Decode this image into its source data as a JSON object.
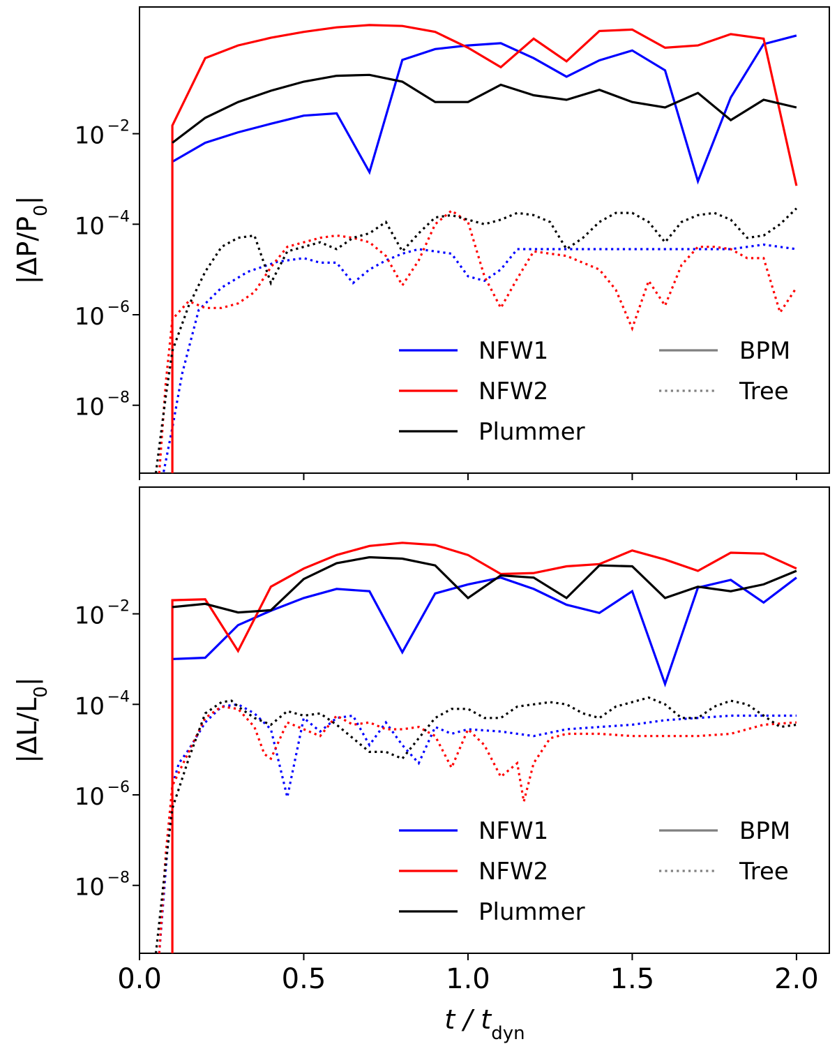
{
  "figure": {
    "xlabel": "t / t_dyn",
    "xlabel_parts": {
      "main": "t / t",
      "sub": "dyn"
    },
    "line_styles": {
      "BPM": "solid",
      "Tree": "dotted"
    }
  },
  "chart_data": [
    {
      "type": "line",
      "panel": "top",
      "ylabel": "|ΔP/P₀|",
      "ylabel_parts": {
        "open": "|ΔP/P",
        "sub": "0",
        "close": "|"
      },
      "yscale": "log",
      "xlim": [
        0.0,
        2.1
      ],
      "ylim_log10": [
        -9.5,
        0.8
      ],
      "xticks": [
        "0.0",
        "0.5",
        "1.0",
        "1.5",
        "2.0"
      ],
      "xtick_values": [
        0.0,
        0.5,
        1.0,
        1.5,
        2.0
      ],
      "yticks": [
        {
          "base": "10",
          "exp": "−2",
          "log10": -2
        },
        {
          "base": "10",
          "exp": "−4",
          "log10": -4
        },
        {
          "base": "10",
          "exp": "−6",
          "log10": -6
        },
        {
          "base": "10",
          "exp": "−8",
          "log10": -8
        }
      ],
      "legend": {
        "models": [
          {
            "label": "NFW1",
            "color": "#0000ff"
          },
          {
            "label": "NFW2",
            "color": "#ff0000"
          },
          {
            "label": "Plummer",
            "color": "#000000"
          }
        ],
        "methods": [
          {
            "label": "BPM",
            "style": "solid",
            "color": "#808080"
          },
          {
            "label": "Tree",
            "style": "dotted",
            "color": "#808080"
          }
        ],
        "position": "lower-right"
      },
      "series": [
        {
          "name": "NFW1",
          "method": "BPM",
          "color": "#0000ff",
          "style": "solid",
          "x": [
            0.1,
            0.2,
            0.3,
            0.4,
            0.5,
            0.6,
            0.7,
            0.8,
            0.9,
            1.0,
            1.1,
            1.2,
            1.3,
            1.4,
            1.5,
            1.6,
            1.7,
            1.8,
            1.9,
            2.0
          ],
          "log10_y": [
            -2.62,
            -2.2,
            -1.97,
            -1.78,
            -1.6,
            -1.55,
            -2.85,
            -0.37,
            -0.13,
            -0.05,
            0.0,
            -0.33,
            -0.74,
            -0.38,
            -0.16,
            -0.6,
            -3.05,
            -1.2,
            -0.02,
            0.17
          ]
        },
        {
          "name": "NFW1",
          "method": "Tree",
          "color": "#0000ff",
          "style": "dotted",
          "x": [
            0.07,
            0.1,
            0.13,
            0.18,
            0.25,
            0.33,
            0.42,
            0.5,
            0.55,
            0.6,
            0.65,
            0.7,
            0.75,
            0.8,
            0.85,
            0.9,
            0.95,
            1.0,
            1.05,
            1.1,
            1.15,
            1.2,
            1.3,
            1.4,
            1.5,
            1.6,
            1.7,
            1.8,
            1.9,
            2.0
          ],
          "log10_y": [
            -9.6,
            -8.5,
            -7.3,
            -5.9,
            -5.4,
            -5.05,
            -4.83,
            -4.75,
            -4.85,
            -4.85,
            -5.3,
            -5.0,
            -4.8,
            -4.65,
            -4.55,
            -4.6,
            -4.65,
            -5.15,
            -5.25,
            -5.0,
            -4.55,
            -4.55,
            -4.55,
            -4.55,
            -4.55,
            -4.55,
            -4.55,
            -4.55,
            -4.45,
            -4.55
          ]
        },
        {
          "name": "NFW2",
          "method": "BPM",
          "color": "#ff0000",
          "style": "solid",
          "x": [
            0.1,
            0.1,
            0.2,
            0.3,
            0.4,
            0.5,
            0.6,
            0.7,
            0.8,
            0.9,
            1.0,
            1.1,
            1.2,
            1.3,
            1.4,
            1.5,
            1.6,
            1.7,
            1.8,
            1.9,
            2.0
          ],
          "log10_y": [
            -9.5,
            -1.82,
            -0.33,
            -0.05,
            0.12,
            0.25,
            0.35,
            0.4,
            0.38,
            0.25,
            -0.1,
            -0.53,
            0.1,
            -0.4,
            0.27,
            0.3,
            -0.1,
            -0.05,
            0.2,
            0.1,
            -3.15
          ]
        },
        {
          "name": "NFW2",
          "method": "Tree",
          "color": "#ff0000",
          "style": "dotted",
          "x": [
            0.06,
            0.08,
            0.1,
            0.15,
            0.2,
            0.25,
            0.3,
            0.35,
            0.4,
            0.45,
            0.5,
            0.55,
            0.6,
            0.65,
            0.7,
            0.75,
            0.8,
            0.85,
            0.9,
            0.95,
            1.0,
            1.05,
            1.1,
            1.15,
            1.2,
            1.3,
            1.4,
            1.45,
            1.5,
            1.55,
            1.6,
            1.65,
            1.7,
            1.75,
            1.8,
            1.85,
            1.9,
            1.95,
            2.0
          ],
          "log10_y": [
            -9.5,
            -7.5,
            -6.1,
            -5.7,
            -5.85,
            -5.85,
            -5.75,
            -5.5,
            -4.95,
            -4.5,
            -4.4,
            -4.3,
            -4.25,
            -4.3,
            -4.4,
            -4.7,
            -5.35,
            -4.8,
            -4.0,
            -3.7,
            -3.95,
            -5.15,
            -5.85,
            -5.2,
            -4.6,
            -4.7,
            -5.0,
            -5.45,
            -6.3,
            -5.25,
            -5.8,
            -4.9,
            -4.5,
            -4.5,
            -4.55,
            -4.75,
            -4.75,
            -5.95,
            -5.4
          ]
        },
        {
          "name": "Plummer",
          "method": "BPM",
          "color": "#000000",
          "style": "solid",
          "x": [
            0.1,
            0.2,
            0.3,
            0.4,
            0.5,
            0.6,
            0.7,
            0.8,
            0.9,
            1.0,
            1.1,
            1.2,
            1.3,
            1.4,
            1.5,
            1.6,
            1.7,
            1.8,
            1.9,
            2.0
          ],
          "log10_y": [
            -2.2,
            -1.65,
            -1.3,
            -1.05,
            -0.85,
            -0.72,
            -0.7,
            -0.85,
            -1.3,
            -1.3,
            -0.92,
            -1.15,
            -1.25,
            -1.03,
            -1.3,
            -1.42,
            -1.1,
            -1.7,
            -1.25,
            -1.42
          ]
        },
        {
          "name": "Plummer",
          "method": "Tree",
          "color": "#000000",
          "style": "dotted",
          "x": [
            0.05,
            0.08,
            0.1,
            0.15,
            0.2,
            0.25,
            0.3,
            0.35,
            0.4,
            0.45,
            0.5,
            0.55,
            0.6,
            0.65,
            0.7,
            0.75,
            0.8,
            0.85,
            0.9,
            0.95,
            1.0,
            1.05,
            1.1,
            1.15,
            1.2,
            1.25,
            1.3,
            1.35,
            1.4,
            1.45,
            1.5,
            1.55,
            1.6,
            1.65,
            1.7,
            1.75,
            1.8,
            1.85,
            1.9,
            1.95,
            2.0
          ],
          "log10_y": [
            -9.5,
            -7.8,
            -6.8,
            -5.8,
            -5.05,
            -4.5,
            -4.3,
            -4.25,
            -5.3,
            -4.6,
            -4.5,
            -4.4,
            -4.55,
            -4.3,
            -4.2,
            -3.95,
            -4.6,
            -4.2,
            -3.85,
            -3.8,
            -3.9,
            -4.0,
            -3.9,
            -3.75,
            -3.8,
            -3.95,
            -4.55,
            -4.3,
            -3.95,
            -3.75,
            -3.75,
            -3.95,
            -4.4,
            -3.95,
            -3.8,
            -3.75,
            -3.9,
            -4.3,
            -4.25,
            -4.0,
            -3.65
          ]
        }
      ]
    },
    {
      "type": "line",
      "panel": "bottom",
      "ylabel": "|ΔL/L₀|",
      "ylabel_parts": {
        "open": "|ΔL/L",
        "sub": "0",
        "close": "|"
      },
      "yscale": "log",
      "xlim": [
        0.0,
        2.1
      ],
      "ylim_log10": [
        -9.5,
        0.8
      ],
      "xticks": [
        "0.0",
        "0.5",
        "1.0",
        "1.5",
        "2.0"
      ],
      "xtick_values": [
        0.0,
        0.5,
        1.0,
        1.5,
        2.0
      ],
      "yticks": [
        {
          "base": "10",
          "exp": "−2",
          "log10": -2
        },
        {
          "base": "10",
          "exp": "−4",
          "log10": -4
        },
        {
          "base": "10",
          "exp": "−6",
          "log10": -6
        },
        {
          "base": "10",
          "exp": "−8",
          "log10": -8
        }
      ],
      "legend": {
        "models": [
          {
            "label": "NFW1",
            "color": "#0000ff"
          },
          {
            "label": "NFW2",
            "color": "#ff0000"
          },
          {
            "label": "Plummer",
            "color": "#000000"
          }
        ],
        "methods": [
          {
            "label": "BPM",
            "style": "solid",
            "color": "#808080"
          },
          {
            "label": "Tree",
            "style": "dotted",
            "color": "#808080"
          }
        ],
        "position": "lower-right"
      },
      "series": [
        {
          "name": "NFW1",
          "method": "BPM",
          "color": "#0000ff",
          "style": "solid",
          "x": [
            0.1,
            0.2,
            0.3,
            0.4,
            0.5,
            0.6,
            0.7,
            0.8,
            0.9,
            1.0,
            1.1,
            1.2,
            1.3,
            1.4,
            1.5,
            1.6,
            1.7,
            1.8,
            1.9,
            2.0
          ],
          "log10_y": [
            -3.0,
            -2.97,
            -2.25,
            -1.93,
            -1.65,
            -1.45,
            -1.5,
            -2.85,
            -1.55,
            -1.35,
            -1.2,
            -1.45,
            -1.8,
            -1.98,
            -1.5,
            -3.55,
            -1.42,
            -1.25,
            -1.75,
            -1.2
          ]
        },
        {
          "name": "NFW1",
          "method": "Tree",
          "color": "#0000ff",
          "style": "dotted",
          "x": [
            0.06,
            0.1,
            0.12,
            0.15,
            0.2,
            0.25,
            0.3,
            0.35,
            0.4,
            0.45,
            0.5,
            0.55,
            0.6,
            0.65,
            0.7,
            0.75,
            0.8,
            0.85,
            0.9,
            0.95,
            1.0,
            1.1,
            1.2,
            1.3,
            1.4,
            1.5,
            1.6,
            1.7,
            1.8,
            1.9,
            2.0
          ],
          "log10_y": [
            -9.5,
            -5.8,
            -5.3,
            -5.0,
            -4.4,
            -4.05,
            -4.0,
            -4.2,
            -4.55,
            -6.05,
            -4.3,
            -4.6,
            -4.3,
            -4.25,
            -4.9,
            -4.4,
            -4.9,
            -5.3,
            -4.5,
            -4.65,
            -4.55,
            -4.6,
            -4.7,
            -4.55,
            -4.5,
            -4.45,
            -4.35,
            -4.3,
            -4.25,
            -4.25,
            -4.25
          ]
        },
        {
          "name": "NFW2",
          "method": "BPM",
          "color": "#ff0000",
          "style": "solid",
          "x": [
            0.1,
            0.1,
            0.2,
            0.3,
            0.4,
            0.5,
            0.6,
            0.7,
            0.8,
            0.9,
            1.0,
            1.1,
            1.2,
            1.3,
            1.4,
            1.5,
            1.6,
            1.7,
            1.8,
            1.9,
            2.0
          ],
          "log10_y": [
            -9.5,
            -1.7,
            -1.68,
            -2.82,
            -1.4,
            -1.0,
            -0.7,
            -0.5,
            -0.43,
            -0.48,
            -0.7,
            -1.12,
            -1.1,
            -0.95,
            -0.9,
            -0.6,
            -0.8,
            -1.05,
            -0.65,
            -0.67,
            -1.0
          ]
        },
        {
          "name": "NFW2",
          "method": "Tree",
          "color": "#ff0000",
          "style": "dotted",
          "x": [
            0.06,
            0.08,
            0.1,
            0.15,
            0.2,
            0.25,
            0.3,
            0.35,
            0.38,
            0.4,
            0.45,
            0.5,
            0.55,
            0.6,
            0.65,
            0.7,
            0.75,
            0.8,
            0.85,
            0.9,
            0.95,
            1.0,
            1.05,
            1.1,
            1.15,
            1.17,
            1.2,
            1.25,
            1.3,
            1.4,
            1.5,
            1.6,
            1.7,
            1.8,
            1.9,
            2.0
          ],
          "log10_y": [
            -9.5,
            -7.3,
            -5.8,
            -5.05,
            -4.3,
            -4.05,
            -4.1,
            -4.5,
            -5.1,
            -5.2,
            -4.4,
            -4.55,
            -4.7,
            -4.25,
            -4.45,
            -4.4,
            -4.55,
            -4.55,
            -4.5,
            -4.7,
            -5.4,
            -4.55,
            -4.9,
            -5.6,
            -5.3,
            -6.15,
            -5.3,
            -4.75,
            -4.65,
            -4.65,
            -4.7,
            -4.7,
            -4.7,
            -4.65,
            -4.45,
            -4.4
          ]
        },
        {
          "name": "Plummer",
          "method": "BPM",
          "color": "#000000",
          "style": "solid",
          "x": [
            0.1,
            0.2,
            0.3,
            0.4,
            0.5,
            0.6,
            0.7,
            0.8,
            0.9,
            1.0,
            1.1,
            1.2,
            1.3,
            1.4,
            1.5,
            1.6,
            1.7,
            1.8,
            1.9,
            2.0
          ],
          "log10_y": [
            -1.85,
            -1.78,
            -1.97,
            -1.92,
            -1.23,
            -0.88,
            -0.75,
            -0.78,
            -0.93,
            -1.65,
            -1.15,
            -1.2,
            -1.65,
            -0.93,
            -0.95,
            -1.65,
            -1.4,
            -1.5,
            -1.35,
            -1.05
          ]
        },
        {
          "name": "Plummer",
          "method": "Tree",
          "color": "#000000",
          "style": "dotted",
          "x": [
            0.05,
            0.08,
            0.1,
            0.15,
            0.2,
            0.25,
            0.28,
            0.3,
            0.35,
            0.4,
            0.45,
            0.5,
            0.55,
            0.6,
            0.65,
            0.7,
            0.75,
            0.8,
            0.85,
            0.9,
            0.95,
            1.0,
            1.05,
            1.1,
            1.15,
            1.2,
            1.25,
            1.3,
            1.35,
            1.4,
            1.45,
            1.5,
            1.55,
            1.6,
            1.65,
            1.7,
            1.75,
            1.8,
            1.85,
            1.9,
            1.95,
            2.0
          ],
          "log10_y": [
            -9.5,
            -7.5,
            -6.3,
            -5.2,
            -4.2,
            -3.95,
            -3.92,
            -4.05,
            -4.3,
            -4.45,
            -4.15,
            -4.25,
            -4.2,
            -4.45,
            -4.75,
            -5.05,
            -5.05,
            -5.2,
            -4.75,
            -4.3,
            -4.1,
            -4.1,
            -4.3,
            -4.3,
            -4.05,
            -4.0,
            -3.95,
            -4.0,
            -4.2,
            -4.3,
            -4.05,
            -3.95,
            -3.85,
            -4.0,
            -4.3,
            -4.3,
            -4.05,
            -3.92,
            -4.0,
            -4.25,
            -4.5,
            -4.45
          ]
        }
      ]
    }
  ]
}
